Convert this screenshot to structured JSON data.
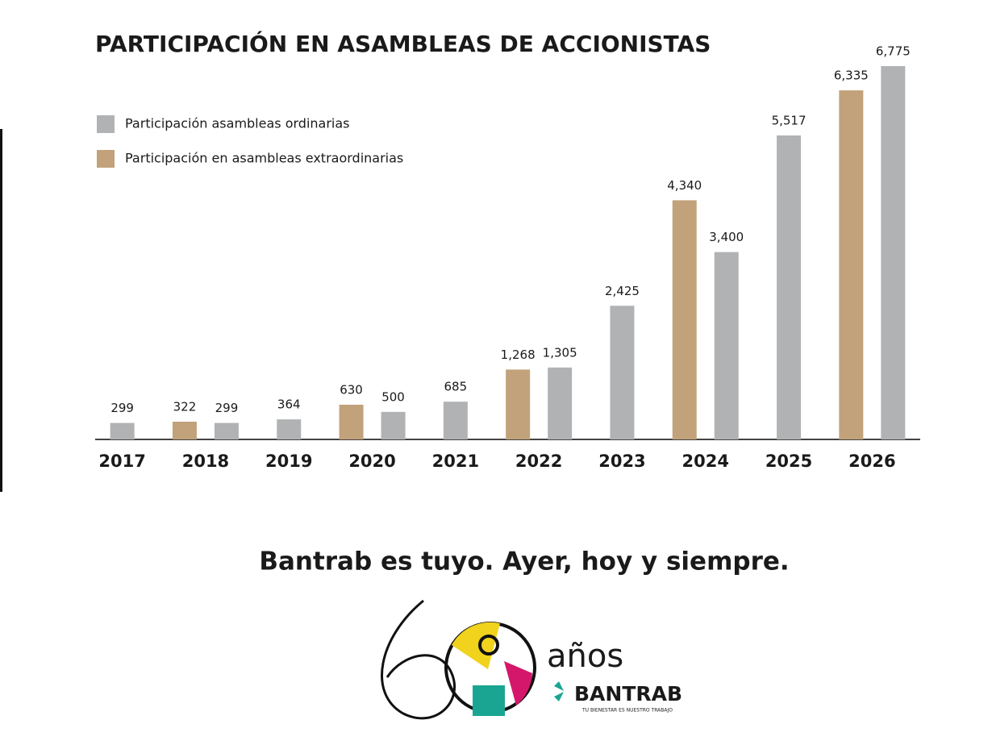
{
  "chart_data": {
    "type": "bar",
    "title": "PARTICIPACIÓN EN ASAMBLEAS DE ACCIONISTAS",
    "categories": [
      "2017",
      "2018",
      "2019",
      "2020",
      "2021",
      "2022",
      "2023",
      "2024",
      "2025",
      "2026"
    ],
    "series": [
      {
        "name": "Participación en asambleas extraordinarias",
        "color": "#c2a27a",
        "values": [
          null,
          322,
          null,
          630,
          null,
          1268,
          null,
          4340,
          null,
          6335
        ],
        "value_labels": [
          null,
          "322",
          null,
          "630",
          null,
          "1,268",
          null,
          "4,340",
          null,
          "6,335"
        ]
      },
      {
        "name": "Participación asambleas ordinarias",
        "color": "#b1b2b4",
        "values": [
          299,
          299,
          364,
          500,
          685,
          1305,
          2425,
          3400,
          5517,
          6775
        ],
        "value_labels": [
          "299",
          "299",
          "364",
          "500",
          "685",
          "1,305",
          "2,425",
          "3,400",
          "5,517",
          "6,775"
        ]
      }
    ]
  },
  "tagline": "Bantrab es tuyo. Ayer, hoy y siempre.",
  "logo": {
    "years": "años",
    "brand": "BANTRAB",
    "slogan": "TU BIENESTAR ES NUESTRO TRABAJO"
  }
}
